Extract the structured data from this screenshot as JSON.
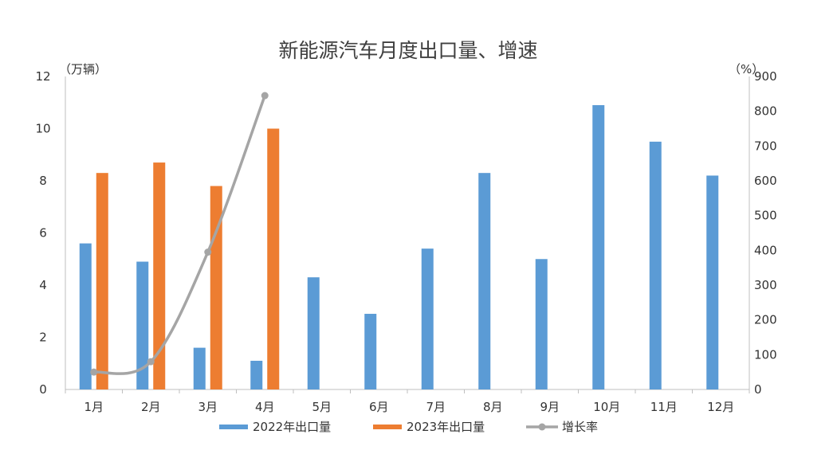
{
  "chart_data": {
    "type": "bar",
    "title": "新能源汽车月度出口量、增速",
    "left_unit": "（万辆）",
    "right_unit": "（%）",
    "categories": [
      "1月",
      "2月",
      "3月",
      "4月",
      "5月",
      "6月",
      "7月",
      "8月",
      "9月",
      "10月",
      "11月",
      "12月"
    ],
    "ylim": [
      0,
      12
    ],
    "y2lim": [
      0,
      900
    ],
    "yticks": [
      0,
      2,
      4,
      6,
      8,
      10,
      12
    ],
    "y2ticks": [
      0,
      100,
      200,
      300,
      400,
      500,
      600,
      700,
      800,
      900
    ],
    "grid": false,
    "legend_position": "bottom",
    "series": [
      {
        "name": "2022年出口量",
        "type": "bar",
        "axis": "left",
        "color": "#5b9bd5",
        "values": [
          5.6,
          4.9,
          1.6,
          1.1,
          4.3,
          2.9,
          5.4,
          8.3,
          5.0,
          10.9,
          9.5,
          8.2
        ]
      },
      {
        "name": "2023年出口量",
        "type": "bar",
        "axis": "left",
        "color": "#ed7d31",
        "values": [
          8.3,
          8.7,
          7.8,
          10.0,
          null,
          null,
          null,
          null,
          null,
          null,
          null,
          null
        ]
      },
      {
        "name": "增长率",
        "type": "line",
        "axis": "right",
        "color": "#a5a5a5",
        "values": [
          50,
          80,
          395,
          845,
          null,
          null,
          null,
          null,
          null,
          null,
          null,
          null
        ]
      }
    ]
  }
}
